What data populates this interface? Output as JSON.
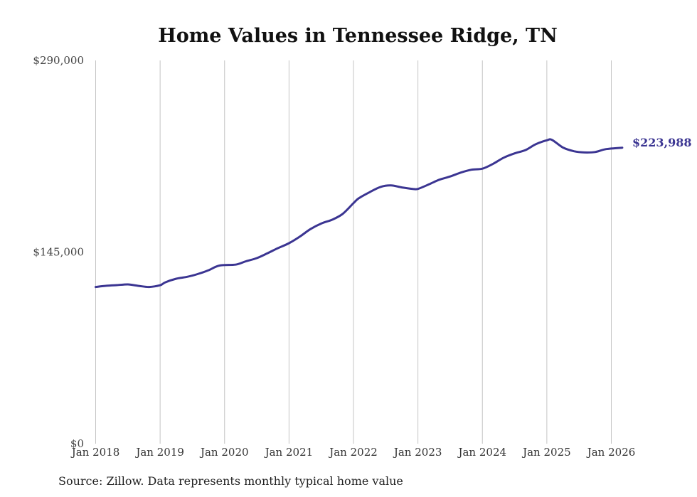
{
  "chart_data": {
    "type": "line",
    "title": "Home Values in Tennessee Ridge, TN",
    "xlabel": "",
    "ylabel": "",
    "ylim": [
      0,
      290000
    ],
    "yticks": [
      {
        "value": 0,
        "label": "$0"
      },
      {
        "value": 145000,
        "label": "$145,000"
      },
      {
        "value": 290000,
        "label": "$290,000"
      }
    ],
    "xticks": [
      {
        "value": 2018,
        "label": "Jan 2018"
      },
      {
        "value": 2019,
        "label": "Jan 2019"
      },
      {
        "value": 2020,
        "label": "Jan 2020"
      },
      {
        "value": 2021,
        "label": "Jan 2021"
      },
      {
        "value": 2022,
        "label": "Jan 2022"
      },
      {
        "value": 2023,
        "label": "Jan 2023"
      },
      {
        "value": 2024,
        "label": "Jan 2024"
      },
      {
        "value": 2025,
        "label": "Jan 2025"
      },
      {
        "value": 2026,
        "label": "Jan 2026"
      }
    ],
    "xlim": [
      2018,
      2026.17
    ],
    "grid": "vertical",
    "line_color": "#3b3592",
    "series": [
      {
        "name": "Typical home value",
        "x": [
          2018.0,
          2018.17,
          2018.33,
          2018.5,
          2018.67,
          2018.83,
          2019.0,
          2019.08,
          2019.25,
          2019.42,
          2019.58,
          2019.75,
          2019.92,
          2020.17,
          2020.33,
          2020.5,
          2020.67,
          2020.83,
          2021.0,
          2021.17,
          2021.33,
          2021.5,
          2021.67,
          2021.83,
          2022.0,
          2022.08,
          2022.25,
          2022.42,
          2022.58,
          2022.75,
          2022.92,
          2023.0,
          2023.17,
          2023.33,
          2023.5,
          2023.67,
          2023.83,
          2024.0,
          2024.17,
          2024.33,
          2024.5,
          2024.67,
          2024.83,
          2025.0,
          2025.08,
          2025.25,
          2025.42,
          2025.58,
          2025.75,
          2025.92,
          2026.17
        ],
        "values": [
          118600,
          119500,
          120000,
          120500,
          119400,
          118600,
          119900,
          122100,
          124800,
          126300,
          128300,
          131200,
          134800,
          135500,
          138000,
          140400,
          144200,
          148000,
          151700,
          156800,
          162300,
          166600,
          169500,
          173800,
          182000,
          185600,
          190300,
          194300,
          195400,
          193900,
          192800,
          192800,
          196200,
          199700,
          202200,
          205200,
          207300,
          208100,
          211900,
          216400,
          219700,
          222200,
          226700,
          229600,
          229900,
          224100,
          221300,
          220400,
          220700,
          222900,
          223988
        ]
      }
    ],
    "end_label": "$223,988"
  },
  "footer": {
    "source": "Source: Zillow. Data represents monthly typical home value"
  }
}
